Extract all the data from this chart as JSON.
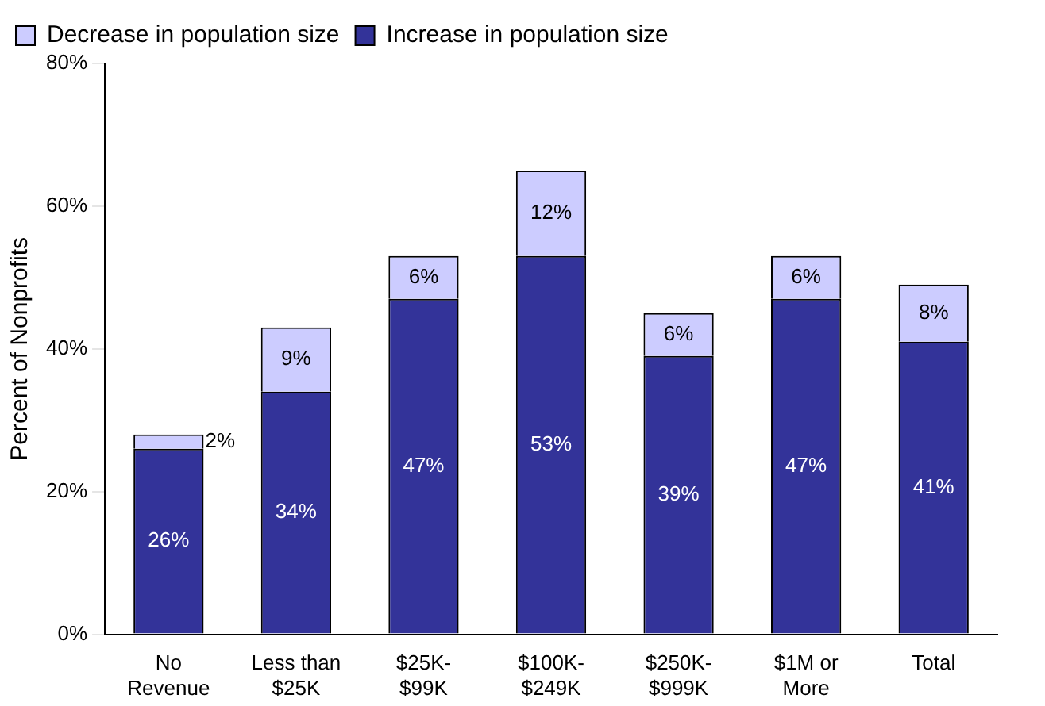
{
  "chart_data": {
    "type": "bar",
    "stacked": true,
    "ylabel": "Percent of Nonprofits",
    "categories": [
      "No\nRevenue",
      "Less than\n$25K",
      "$25K-\n$99K",
      "$100K-\n$249K",
      "$250K-\n$999K",
      "$1M or\nMore",
      "Total"
    ],
    "series": [
      {
        "name": "Increase in population size",
        "color": "#333399",
        "values": [
          26,
          34,
          47,
          53,
          39,
          47,
          41
        ],
        "value_labels": [
          "26%",
          "34%",
          "47%",
          "53%",
          "39%",
          "47%",
          "41%"
        ]
      },
      {
        "name": "Decrease in population size",
        "color": "#ccccff",
        "values": [
          2,
          9,
          6,
          12,
          6,
          6,
          8
        ],
        "value_labels": [
          "2%",
          "9%",
          "6%",
          "12%",
          "6%",
          "6%",
          "8%"
        ]
      }
    ],
    "ylim": [
      0,
      80
    ],
    "yticks": [
      {
        "value": 0,
        "label": "0%"
      },
      {
        "value": 20,
        "label": "20%"
      },
      {
        "value": 40,
        "label": "40%"
      },
      {
        "value": 60,
        "label": "60%"
      },
      {
        "value": 80,
        "label": "80%"
      }
    ],
    "grid": false,
    "legend": "top left"
  }
}
